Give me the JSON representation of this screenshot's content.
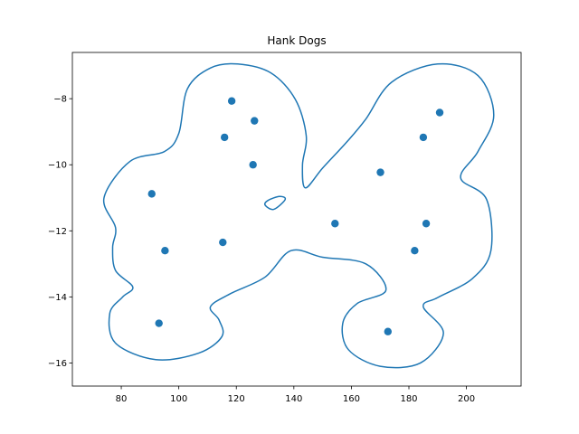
{
  "chart_data": {
    "type": "scatter",
    "title": "Hank Dogs",
    "xlabel": "",
    "ylabel": "",
    "xlim": [
      63,
      219
    ],
    "ylim": [
      -16.7,
      -6.6
    ],
    "grid": false,
    "x_ticks": [
      80,
      100,
      120,
      140,
      160,
      180,
      200
    ],
    "y_ticks": [
      -8,
      -10,
      -12,
      -14,
      -16
    ],
    "x_tick_labels": [
      "80",
      "100",
      "120",
      "140",
      "160",
      "180",
      "200"
    ],
    "y_tick_labels": [
      "−8",
      "−10",
      "−12",
      "−14",
      "−16"
    ],
    "colors": {
      "series": "#1f77b4",
      "axes": "#000000",
      "background": "#ffffff"
    },
    "points": {
      "x": [
        118.4,
        126.3,
        115.9,
        125.8,
        90.6,
        95.2,
        115.3,
        93.1,
        190.7,
        185.0,
        170.1,
        154.3,
        186.0,
        182.0,
        172.7
      ],
      "y": [
        -8.07,
        -8.67,
        -9.17,
        -10.0,
        -10.88,
        -12.6,
        -12.35,
        -14.8,
        -8.42,
        -9.17,
        -10.23,
        -11.78,
        -11.78,
        -12.6,
        -15.05
      ]
    },
    "outline": [
      [
        120.5,
        -6.95
      ],
      [
        132.0,
        -7.22
      ],
      [
        140.5,
        -8.02
      ],
      [
        144.3,
        -9.12
      ],
      [
        143.0,
        -10.0
      ],
      [
        144.0,
        -10.7
      ],
      [
        150.0,
        -10.1
      ],
      [
        158.5,
        -9.3
      ],
      [
        165.0,
        -8.62
      ],
      [
        174.0,
        -7.5
      ],
      [
        190.0,
        -6.95
      ],
      [
        204.0,
        -7.3
      ],
      [
        209.5,
        -8.5
      ],
      [
        204.0,
        -9.6
      ],
      [
        198.0,
        -10.4
      ],
      [
        207.0,
        -11.05
      ],
      [
        208.5,
        -12.6
      ],
      [
        202.0,
        -13.45
      ],
      [
        190.0,
        -14.02
      ],
      [
        185.0,
        -14.3
      ],
      [
        192.0,
        -15.1
      ],
      [
        184.0,
        -16.0
      ],
      [
        170.0,
        -16.1
      ],
      [
        159.0,
        -15.6
      ],
      [
        157.0,
        -14.8
      ],
      [
        162.0,
        -14.2
      ],
      [
        172.0,
        -13.8
      ],
      [
        165.0,
        -13.0
      ],
      [
        150.0,
        -12.8
      ],
      [
        139.0,
        -12.6
      ],
      [
        130.0,
        -13.4
      ],
      [
        118.0,
        -13.9
      ],
      [
        111.0,
        -14.3
      ],
      [
        114.0,
        -14.7
      ],
      [
        115.0,
        -15.2
      ],
      [
        107.0,
        -15.7
      ],
      [
        92.0,
        -15.9
      ],
      [
        78.0,
        -15.4
      ],
      [
        76.0,
        -14.5
      ],
      [
        80.5,
        -14.0
      ],
      [
        84.0,
        -13.7
      ],
      [
        78.0,
        -13.2
      ],
      [
        77.0,
        -12.5
      ],
      [
        78.0,
        -11.9
      ],
      [
        74.0,
        -11.0
      ],
      [
        83.0,
        -9.9
      ],
      [
        95.0,
        -9.6
      ],
      [
        100.0,
        -9.05
      ],
      [
        103.0,
        -7.7
      ],
      [
        111.0,
        -7.07
      ]
    ],
    "inner_loop": [
      [
        137.0,
        -11.05
      ],
      [
        133.0,
        -11.35
      ],
      [
        130.0,
        -11.22
      ],
      [
        131.0,
        -11.08
      ],
      [
        135.0,
        -10.96
      ]
    ]
  }
}
